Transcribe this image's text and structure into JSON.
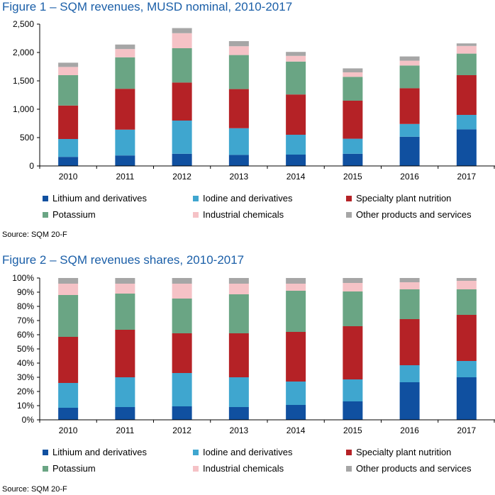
{
  "colors": {
    "lithium": "#1050a0",
    "iodine": "#3fa6cf",
    "specialty": "#b52226",
    "potassium": "#6aa584",
    "industrial": "#f5c2c6",
    "other": "#a6a6a6"
  },
  "chart_data": [
    {
      "type": "bar",
      "stacked": true,
      "title": "Figure 1 – SQM revenues, MUSD nominal, 2010-2017",
      "categories": [
        "2010",
        "2011",
        "2012",
        "2013",
        "2014",
        "2015",
        "2016",
        "2017"
      ],
      "ylim": [
        0,
        2500
      ],
      "yticks": [
        "0",
        "500",
        "1,000",
        "1,500",
        "2,000",
        "2,500"
      ],
      "ytick_values": [
        0,
        500,
        1000,
        1500,
        2000,
        2500
      ],
      "series": [
        {
          "name": "Lithium and derivatives",
          "color_key": "lithium",
          "values": [
            160,
            185,
            215,
            195,
            200,
            215,
            515,
            645
          ]
        },
        {
          "name": "Iodine and derivatives",
          "color_key": "iodine",
          "values": [
            315,
            455,
            585,
            470,
            350,
            265,
            225,
            255
          ]
        },
        {
          "name": "Specialty plant nutrition",
          "color_key": "specialty",
          "values": [
            590,
            720,
            670,
            690,
            710,
            670,
            630,
            700
          ]
        },
        {
          "name": "Potassium",
          "color_key": "potassium",
          "values": [
            535,
            555,
            605,
            600,
            580,
            420,
            400,
            380
          ]
        },
        {
          "name": "Industrial chemicals",
          "color_key": "industrial",
          "values": [
            145,
            145,
            265,
            155,
            100,
            80,
            85,
            135
          ]
        },
        {
          "name": "Other products and services",
          "color_key": "other",
          "values": [
            75,
            80,
            90,
            90,
            70,
            70,
            75,
            45
          ]
        }
      ],
      "source": "Source: SQM 20-F"
    },
    {
      "type": "bar",
      "stacked": true,
      "title": "Figure 2 – SQM revenues shares, 2010-2017",
      "categories": [
        "2010",
        "2011",
        "2012",
        "2013",
        "2014",
        "2015",
        "2016",
        "2017"
      ],
      "ylim": [
        0,
        100
      ],
      "yticks": [
        "0%",
        "10%",
        "20%",
        "30%",
        "40%",
        "50%",
        "60%",
        "70%",
        "80%",
        "90%",
        "100%"
      ],
      "ytick_values": [
        0,
        10,
        20,
        30,
        40,
        50,
        60,
        70,
        80,
        90,
        100
      ],
      "series": [
        {
          "name": "Lithium and derivatives",
          "color_key": "lithium",
          "values": [
            8.5,
            9,
            9.5,
            9,
            10.5,
            13,
            26.5,
            30
          ]
        },
        {
          "name": "Iodine and derivatives",
          "color_key": "iodine",
          "values": [
            17.5,
            21,
            23.5,
            21,
            16.5,
            15.5,
            12,
            11.5
          ]
        },
        {
          "name": "Specialty plant nutrition",
          "color_key": "specialty",
          "values": [
            32.5,
            33.5,
            28,
            31,
            35,
            37.5,
            32.5,
            32.5
          ]
        },
        {
          "name": "Potassium",
          "color_key": "potassium",
          "values": [
            29.5,
            25.5,
            24.5,
            27.5,
            29,
            24.5,
            21,
            18
          ]
        },
        {
          "name": "Industrial chemicals",
          "color_key": "industrial",
          "values": [
            8,
            7,
            10.5,
            7.5,
            5,
            6,
            5,
            6
          ]
        },
        {
          "name": "Other products and services",
          "color_key": "other",
          "values": [
            4,
            4,
            4,
            4,
            4,
            3.5,
            3,
            2
          ]
        }
      ],
      "source": "Source: SQM 20-F"
    }
  ]
}
